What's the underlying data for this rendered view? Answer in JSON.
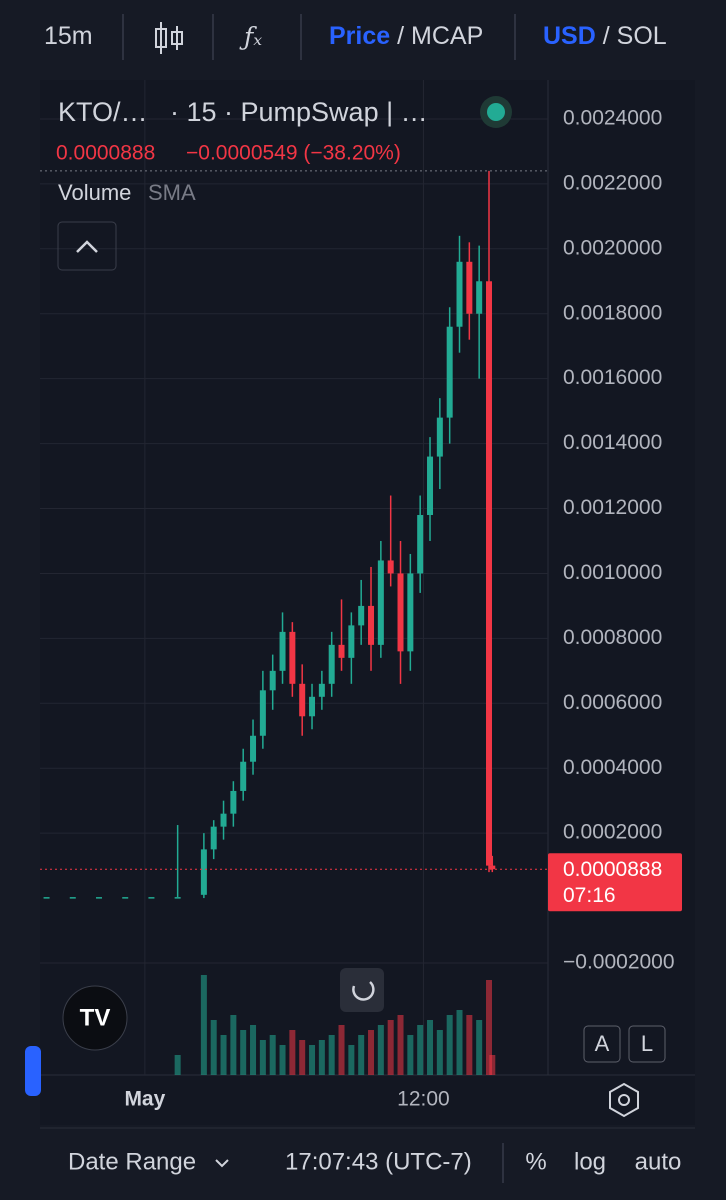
{
  "toolbar": {
    "interval": "15m",
    "price": "Price",
    "mcap": "/ MCAP",
    "usd": "USD",
    "sol": "/ SOL"
  },
  "legend": {
    "symbol": "KTO/…",
    "source": "· 15 · PumpSwap | …",
    "change": "−0.0000549 (−38.20%)",
    "volume": "Volume",
    "sma": "SMA"
  },
  "axis_buttons": {
    "a": "A",
    "l": "L"
  },
  "bottom_bar": {
    "date_range": "Date Range",
    "time": "17:07:43 (UTC-7)",
    "percent": "%",
    "log": "log",
    "auto": "auto"
  },
  "chart_data": {
    "type": "candlestick",
    "x": [
      2,
      10,
      18,
      26,
      34,
      42,
      50,
      53,
      56,
      59,
      62,
      65,
      68,
      71,
      74,
      77,
      80,
      83,
      86,
      89,
      92,
      95,
      98,
      101,
      104,
      107,
      110,
      113,
      116,
      119,
      122,
      125,
      128,
      131,
      134,
      137,
      138
    ],
    "open": [
      3e-06,
      3e-06,
      3e-06,
      3e-06,
      3e-06,
      3e-06,
      1e-05,
      0.00015,
      0.00022,
      0.00026,
      0.00033,
      0.00042,
      0.0005,
      0.00064,
      0.0007,
      0.00082,
      0.00066,
      0.00056,
      0.00062,
      0.00066,
      0.00078,
      0.00074,
      0.00084,
      0.0009,
      0.00078,
      0.00104,
      0.001,
      0.00076,
      0.001,
      0.00118,
      0.00136,
      0.00148,
      0.00176,
      0.00196,
      0.0018,
      0.0019,
      0.0001
    ],
    "high": [
      3e-06,
      3e-06,
      3e-06,
      3e-06,
      3e-06,
      0.000225,
      0.0002,
      0.00024,
      0.0003,
      0.00036,
      0.00046,
      0.00055,
      0.0007,
      0.00075,
      0.00088,
      0.00085,
      0.00072,
      0.00066,
      0.0007,
      0.00082,
      0.00092,
      0.00088,
      0.00098,
      0.00102,
      0.0011,
      0.00124,
      0.0011,
      0.00106,
      0.00124,
      0.00142,
      0.00154,
      0.00182,
      0.00204,
      0.00202,
      0.00201,
      0.00224,
      0.00013
    ],
    "low": [
      3e-06,
      3e-06,
      3e-06,
      3e-06,
      3e-06,
      3e-06,
      0,
      0.00012,
      0.00018,
      0.00022,
      0.0003,
      0.00038,
      0.00046,
      0.00058,
      0.00066,
      0.00062,
      0.0005,
      0.00052,
      0.00058,
      0.00062,
      0.0007,
      0.00066,
      0.00078,
      0.0007,
      0.00074,
      0.00096,
      0.00066,
      0.0007,
      0.00094,
      0.0011,
      0.00126,
      0.0014,
      0.00168,
      0.00172,
      0.0016,
      8e-05,
      8e-05
    ],
    "close": [
      3e-06,
      3e-06,
      3e-06,
      3e-06,
      3e-06,
      3e-06,
      0.00015,
      0.00022,
      0.00026,
      0.00033,
      0.00042,
      0.0005,
      0.00064,
      0.0007,
      0.00082,
      0.00066,
      0.00056,
      0.00062,
      0.00066,
      0.00078,
      0.00074,
      0.00084,
      0.0009,
      0.00078,
      0.00104,
      0.001,
      0.00076,
      0.001,
      0.00118,
      0.00136,
      0.00148,
      0.00176,
      0.00196,
      0.0018,
      0.0019,
      0.0001,
      8.88e-05
    ],
    "volume": [
      0,
      0,
      0,
      0,
      0,
      20,
      100,
      55,
      40,
      60,
      45,
      50,
      35,
      40,
      30,
      45,
      35,
      30,
      35,
      40,
      50,
      30,
      40,
      45,
      50,
      55,
      60,
      40,
      50,
      55,
      45,
      60,
      65,
      60,
      55,
      95,
      20
    ],
    "up_color": "#22ab94",
    "down_color": "#f23645",
    "xlim": [
      0,
      155
    ],
    "xticks": [
      {
        "value": 32,
        "label": "May"
      },
      {
        "value": 117,
        "label": "12:00"
      }
    ],
    "ylim": [
      -0.000545,
      0.00252
    ],
    "yticks": [
      {
        "value": -0.0002,
        "label": "−0.0002000"
      },
      {
        "value": 0.0002,
        "label": "0.0002000"
      },
      {
        "value": 0.0004,
        "label": "0.0004000"
      },
      {
        "value": 0.0006,
        "label": "0.0006000"
      },
      {
        "value": 0.0008,
        "label": "0.0008000"
      },
      {
        "value": 0.001,
        "label": "0.0010000"
      },
      {
        "value": 0.0012,
        "label": "0.0012000"
      },
      {
        "value": 0.0014,
        "label": "0.0014000"
      },
      {
        "value": 0.0016,
        "label": "0.0016000"
      },
      {
        "value": 0.0018,
        "label": "0.0018000"
      },
      {
        "value": 0.002,
        "label": "0.0020000"
      },
      {
        "value": 0.0022,
        "label": "0.0022000"
      },
      {
        "value": 0.0024,
        "label": "0.0024000"
      }
    ],
    "grid": true,
    "last_price": 8.88e-05,
    "countdown": "07:16"
  }
}
